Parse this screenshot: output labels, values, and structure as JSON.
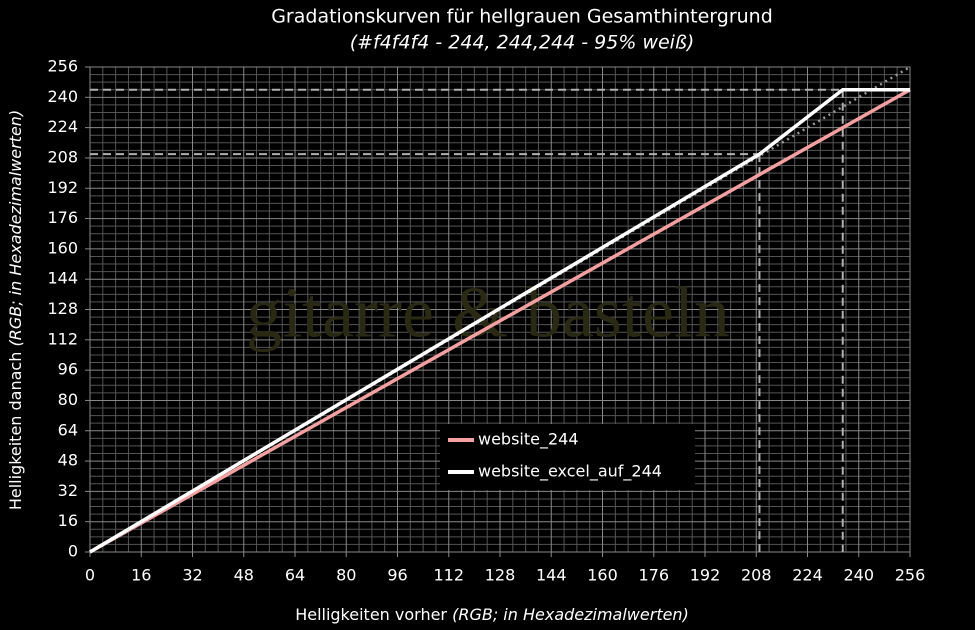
{
  "chart_data": {
    "type": "line",
    "title": "Gradationskurven für hellgrauen Gesamthintergrund",
    "subtitle": "(#f4f4f4 - 244, 244,244 - 95% weiß)",
    "x_label": {
      "main": "Helligkeiten vorher",
      "detail": "(RGB; in Hexadezimalwerten)"
    },
    "y_label": {
      "main": "Helligkeiten danach",
      "detail": "(RGB; in Hexadezimalwerten)"
    },
    "watermark": "gitarre & basteln",
    "xlim": [
      0,
      256
    ],
    "ylim": [
      0,
      256
    ],
    "xticks": [
      0,
      16,
      32,
      48,
      64,
      80,
      96,
      112,
      128,
      144,
      160,
      176,
      192,
      208,
      224,
      240,
      256
    ],
    "yticks": [
      0,
      16,
      32,
      48,
      64,
      80,
      96,
      112,
      128,
      144,
      160,
      176,
      192,
      208,
      224,
      240,
      256
    ],
    "grid": true,
    "minor_grid_per_tick": 4,
    "series": [
      {
        "name": "website_244",
        "color": "#f4a0a0",
        "x": [
          0,
          256
        ],
        "values": [
          0,
          244
        ]
      },
      {
        "name": "website_excel_auf_244",
        "color": "#ffffff",
        "x": [
          0,
          209,
          235,
          256
        ],
        "values": [
          0,
          210,
          244,
          244
        ]
      }
    ],
    "reference_line": {
      "color": "#9a9a9a",
      "x": [
        0,
        256
      ],
      "values": [
        0,
        256
      ]
    },
    "guides": [
      {
        "x": 235,
        "y": 244
      },
      {
        "x": 209,
        "y": 210
      }
    ],
    "guide_color": "#b0b0b0"
  }
}
